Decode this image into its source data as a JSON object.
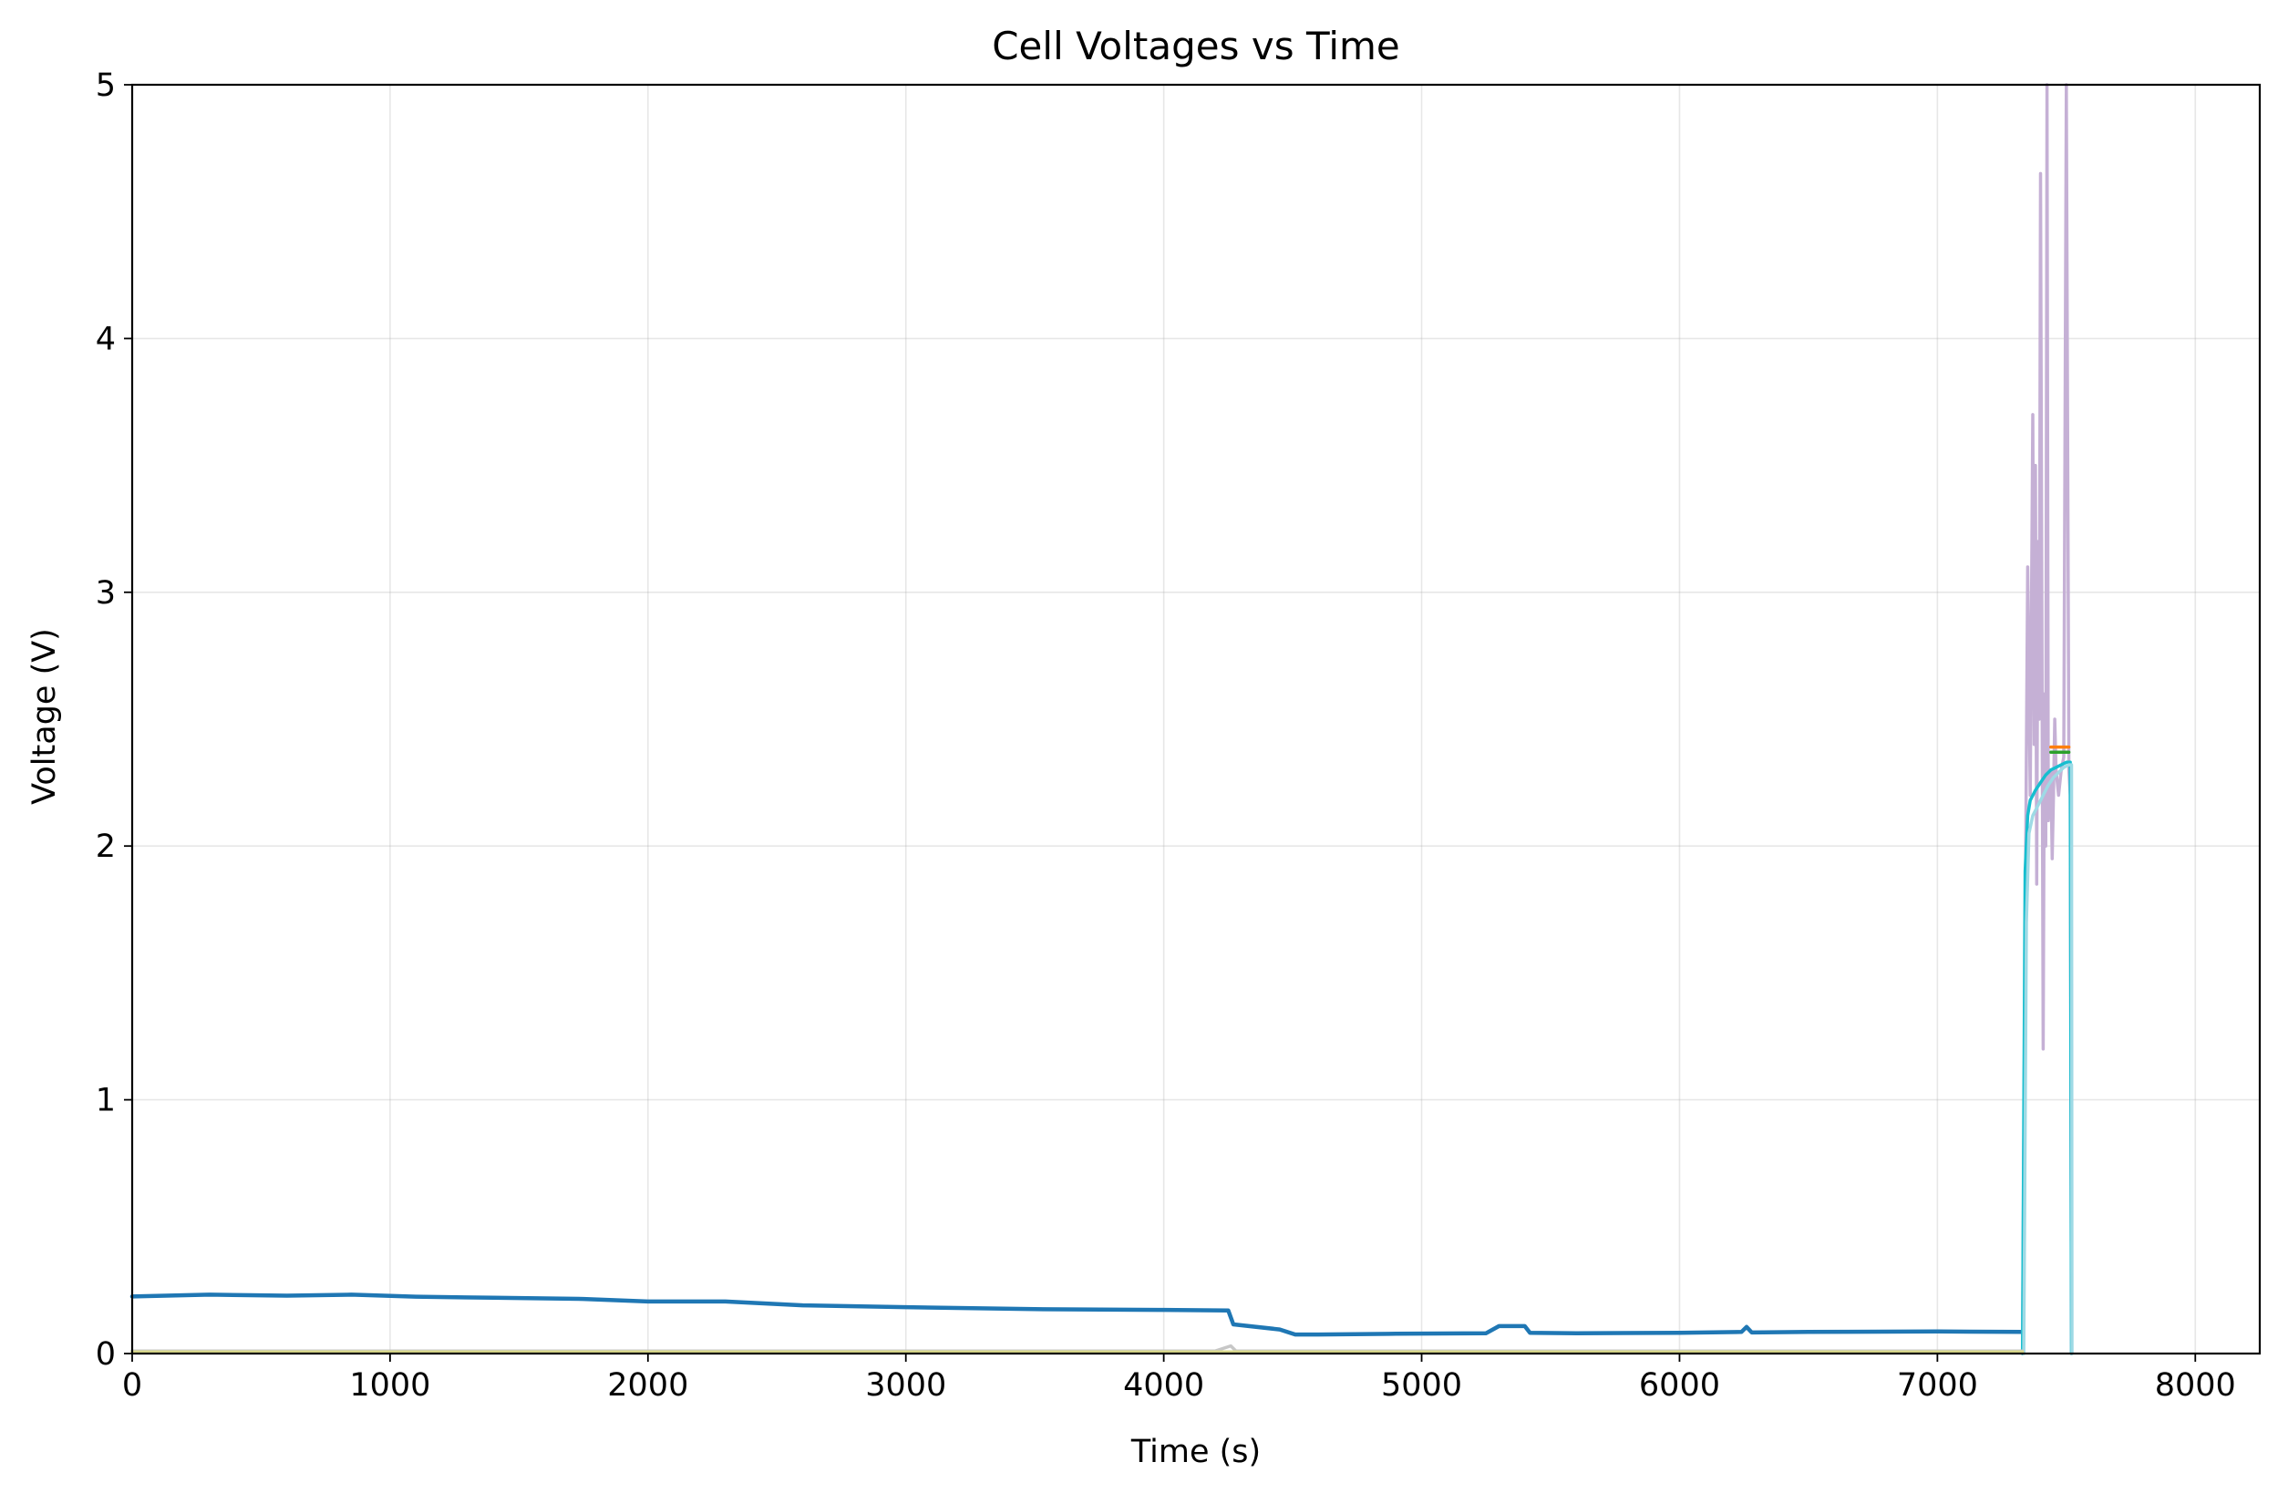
{
  "chart_data": {
    "type": "line",
    "title": "Cell Voltages vs Time",
    "xlabel": "Time (s)",
    "ylabel": "Voltage (V)",
    "xlim": [
      0,
      8250
    ],
    "ylim": [
      0,
      5
    ],
    "xticks": [
      "0",
      "1000",
      "2000",
      "3000",
      "4000",
      "5000",
      "6000",
      "7000",
      "8000"
    ],
    "yticks": [
      "0",
      "1",
      "2",
      "3",
      "4",
      "5"
    ],
    "grid": true,
    "legend": "none",
    "series": [
      {
        "color": "#1f77b4",
        "x": [
          0,
          300,
          600,
          850,
          1100,
          1400,
          1750,
          2000,
          2300,
          2600,
          3000,
          3500,
          4000,
          4250,
          4270,
          4450,
          4510,
          4600,
          4900,
          5250,
          5300,
          5400,
          5420,
          5600,
          6000,
          6240,
          6260,
          6280,
          6500,
          7000,
          7330
        ],
        "y": [
          0.225,
          0.232,
          0.228,
          0.232,
          0.224,
          0.22,
          0.215,
          0.205,
          0.205,
          0.19,
          0.183,
          0.175,
          0.172,
          0.17,
          0.115,
          0.095,
          0.075,
          0.075,
          0.078,
          0.08,
          0.108,
          0.108,
          0.082,
          0.08,
          0.082,
          0.085,
          0.105,
          0.083,
          0.085,
          0.087,
          0.085
        ]
      },
      {
        "color": "#c5b0d5",
        "x": [
          7330,
          7340,
          7350,
          7360,
          7370,
          7375,
          7380,
          7385,
          7390,
          7395,
          7400,
          7410,
          7415,
          7420,
          7425,
          7430,
          7440,
          7445,
          7450,
          7455,
          7460,
          7470,
          7480,
          7490,
          7500,
          7510,
          7515,
          7520
        ],
        "y": [
          0,
          1.65,
          3.1,
          2.2,
          3.7,
          2.4,
          3.5,
          1.85,
          3.2,
          2.5,
          4.65,
          1.2,
          2.6,
          2.0,
          5.0,
          2.1,
          2.3,
          1.95,
          2.2,
          2.5,
          2.3,
          2.2,
          2.3,
          2.35,
          5.0,
          2.3,
          2.2,
          0
        ]
      },
      {
        "color": "#17becf",
        "x": [
          7330,
          7340,
          7350,
          7360,
          7380,
          7400,
          7420,
          7440,
          7460,
          7480,
          7500,
          7515,
          7520
        ],
        "y": [
          0,
          1.9,
          2.12,
          2.18,
          2.22,
          2.25,
          2.28,
          2.3,
          2.31,
          2.32,
          2.33,
          2.33,
          0
        ]
      },
      {
        "color": "#9edae5",
        "x": [
          7335,
          7345,
          7355,
          7370,
          7390,
          7410,
          7430,
          7450,
          7470,
          7490,
          7510,
          7520,
          7522
        ],
        "y": [
          0,
          1.7,
          2.05,
          2.12,
          2.16,
          2.2,
          2.24,
          2.27,
          2.29,
          2.31,
          2.32,
          2.32,
          0
        ]
      },
      {
        "color": "#ff7f0e",
        "x": [
          7440,
          7510
        ],
        "y": [
          2.39,
          2.39
        ]
      },
      {
        "color": "#2ca02c",
        "x": [
          7440,
          7510
        ],
        "y": [
          2.37,
          2.37
        ]
      },
      {
        "color": "#c7c7c7",
        "x": [
          0,
          4200,
          4260,
          4280,
          7330
        ],
        "y": [
          0.01,
          0.01,
          0.03,
          0.01,
          0.01
        ]
      },
      {
        "color": "#dbdb8d",
        "x": [
          0,
          7330
        ],
        "y": [
          0.006,
          0.006
        ]
      }
    ]
  }
}
